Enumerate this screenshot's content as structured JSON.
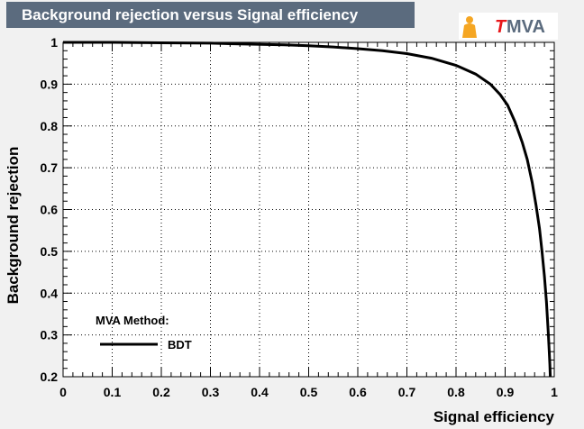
{
  "header": {
    "title": "Background rejection versus Signal efficiency",
    "logo_text": "MVA",
    "logo_accent": "T"
  },
  "colors": {
    "canvas_bg": "#f1f1f1",
    "plot_bg": "#ffffff",
    "title_bg": "#5b6b7e",
    "title_text": "#ffffff",
    "logo_text": "#5b6b7e",
    "logo_accent": "#e8171a",
    "logo_orange": "#f5a623",
    "curve": "#000000"
  },
  "chart_data": {
    "type": "line",
    "title": "Background rejection versus Signal efficiency",
    "xlabel": "Signal efficiency",
    "ylabel": "Background rejection",
    "xlim": [
      0,
      1
    ],
    "ylim": [
      0.2,
      1
    ],
    "grid": true,
    "x_ticks": [
      0,
      0.1,
      0.2,
      0.3,
      0.4,
      0.5,
      0.6,
      0.7,
      0.8,
      0.9,
      1
    ],
    "y_ticks": [
      0.2,
      0.3,
      0.4,
      0.5,
      0.6,
      0.7,
      0.8,
      0.9,
      1
    ],
    "x_tick_labels": [
      "0",
      "0.1",
      "0.2",
      "0.3",
      "0.4",
      "0.5",
      "0.6",
      "0.7",
      "0.8",
      "0.9",
      "1"
    ],
    "y_tick_labels": [
      "0.2",
      "0.3",
      "0.4",
      "0.5",
      "0.6",
      "0.7",
      "0.8",
      "0.9",
      "1"
    ],
    "legend": {
      "header": "MVA Method:",
      "entries": [
        "BDT"
      ],
      "placement": "bottom-left"
    },
    "series": [
      {
        "name": "BDT",
        "points": [
          [
            0.0,
            1.0
          ],
          [
            0.1,
            1.0
          ],
          [
            0.2,
            0.999
          ],
          [
            0.3,
            0.998
          ],
          [
            0.37,
            0.996
          ],
          [
            0.45,
            0.994
          ],
          [
            0.5,
            0.992
          ],
          [
            0.55,
            0.989
          ],
          [
            0.6,
            0.985
          ],
          [
            0.65,
            0.98
          ],
          [
            0.7,
            0.973
          ],
          [
            0.75,
            0.962
          ],
          [
            0.8,
            0.945
          ],
          [
            0.84,
            0.924
          ],
          [
            0.87,
            0.9
          ],
          [
            0.89,
            0.875
          ],
          [
            0.905,
            0.85
          ],
          [
            0.92,
            0.81
          ],
          [
            0.935,
            0.76
          ],
          [
            0.945,
            0.72
          ],
          [
            0.955,
            0.665
          ],
          [
            0.963,
            0.61
          ],
          [
            0.97,
            0.555
          ],
          [
            0.975,
            0.5
          ],
          [
            0.98,
            0.44
          ],
          [
            0.984,
            0.38
          ],
          [
            0.988,
            0.3
          ],
          [
            0.991,
            0.23
          ],
          [
            0.992,
            0.2
          ]
        ]
      }
    ]
  }
}
